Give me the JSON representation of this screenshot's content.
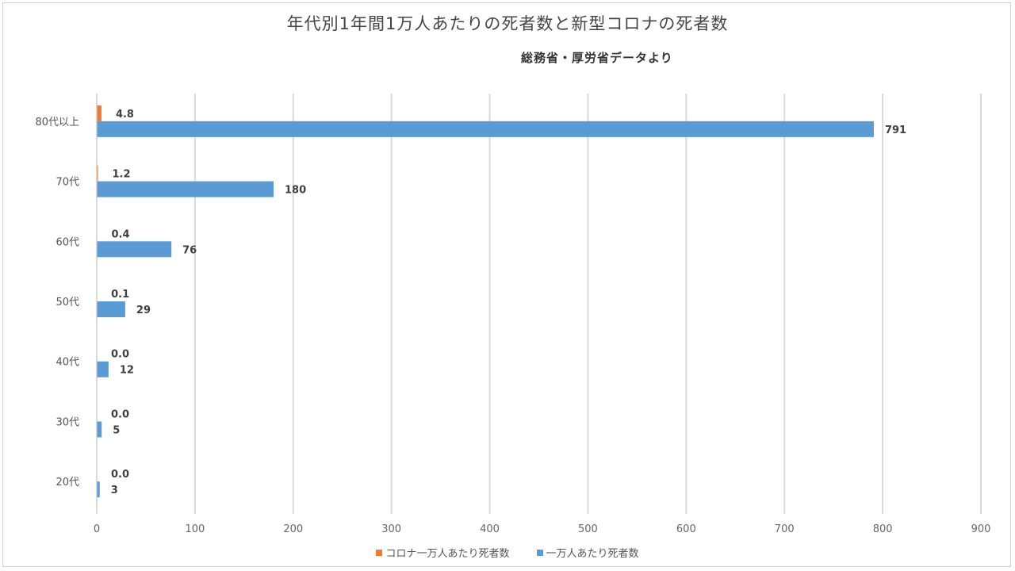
{
  "chart_data": {
    "type": "bar",
    "orientation": "horizontal",
    "title": "年代別1年間1万人あたりの死者数と新型コロナの死者数",
    "subtitle": "総務省・厚労省データより",
    "categories": [
      "80代以上",
      "70代",
      "60代",
      "50代",
      "40代",
      "30代",
      "20代"
    ],
    "series": [
      {
        "name": "コロナ一万人あたり死者数",
        "color": "#ED7D31",
        "values": [
          4.8,
          1.2,
          0.4,
          0.1,
          0.0,
          0.0,
          0.0
        ],
        "labels": [
          "4.8",
          "1.2",
          "0.4",
          "0.1",
          "0.0",
          "0.0",
          "0.0"
        ]
      },
      {
        "name": "一万人あたり死者数",
        "color": "#5B9BD5",
        "values": [
          791,
          180,
          76,
          29,
          12,
          5,
          3
        ],
        "labels": [
          "791",
          "180",
          "76",
          "29",
          "12",
          "5",
          "3"
        ]
      }
    ],
    "xlim": [
      0,
      900
    ],
    "xticks": [
      0,
      100,
      200,
      300,
      400,
      500,
      600,
      700,
      800,
      900
    ],
    "xlabel": "",
    "ylabel": "",
    "grid": "vertical",
    "legend": "bottom-center"
  }
}
